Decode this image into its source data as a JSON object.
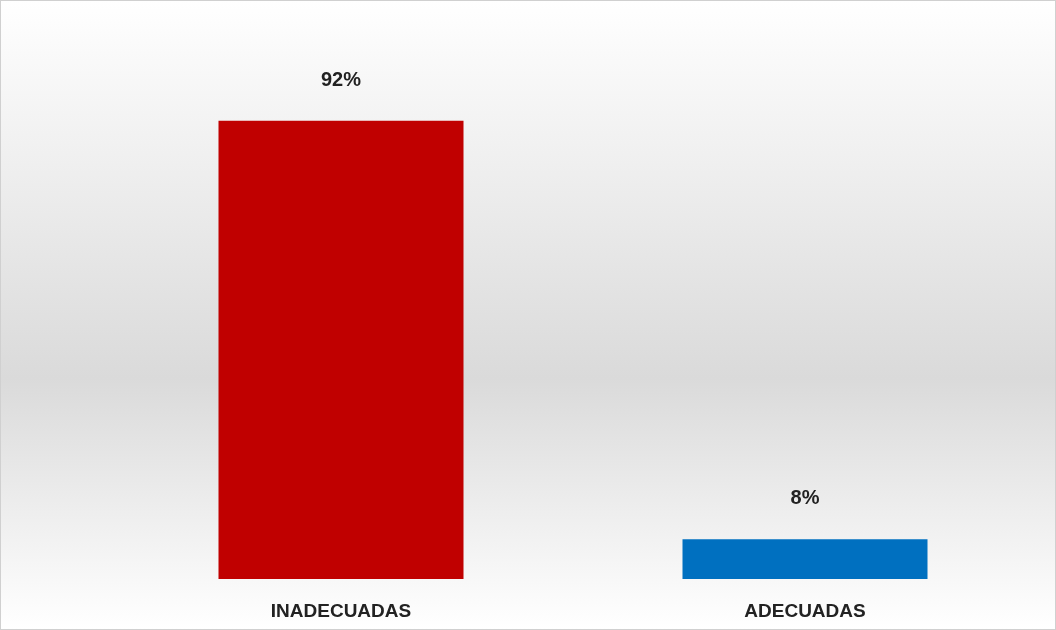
{
  "chart_data": {
    "type": "bar",
    "categories": [
      "INADECUADAS",
      "ADECUADAS"
    ],
    "values": [
      92,
      8
    ],
    "colors": [
      "#c00000",
      "#0070c0"
    ],
    "value_labels": [
      "92%",
      "8%"
    ]
  }
}
